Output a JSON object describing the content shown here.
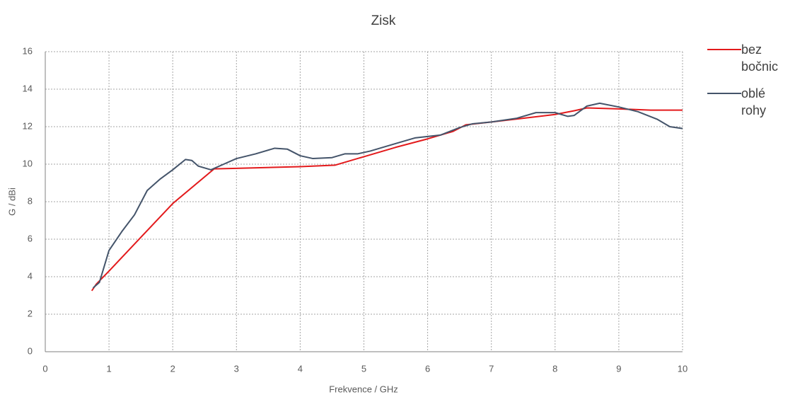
{
  "chart_data": {
    "type": "line",
    "title": "Zisk",
    "xlabel": "Frekvence / GHz",
    "ylabel": "G / dBi",
    "xlim": [
      0,
      10
    ],
    "xticks": [
      0,
      1,
      2,
      3,
      4,
      5,
      6,
      7,
      8,
      9,
      10
    ],
    "ylim": [
      0,
      16
    ],
    "yticks": [
      0,
      2,
      4,
      6,
      8,
      10,
      12,
      14,
      16
    ],
    "grid": true,
    "series": [
      {
        "name": "bez bočnic",
        "color": "#e31a1c",
        "x": [
          0.73,
          0.8,
          1,
          1.5,
          2,
          2.65,
          3,
          4,
          4.55,
          5,
          5.5,
          6,
          6.4,
          6.6,
          7,
          7.5,
          8,
          8.3,
          8.5,
          9,
          9.5,
          10
        ],
        "values": [
          3.25,
          3.6,
          4.3,
          6.1,
          7.9,
          9.75,
          9.78,
          9.87,
          9.95,
          10.4,
          10.9,
          11.35,
          11.75,
          12.1,
          12.25,
          12.45,
          12.65,
          12.85,
          13.0,
          12.95,
          12.88,
          12.88
        ]
      },
      {
        "name": "oblé rohy",
        "color": "#44546a",
        "x": [
          0.75,
          0.85,
          1,
          1.2,
          1.4,
          1.6,
          1.8,
          2,
          2.2,
          2.3,
          2.4,
          2.6,
          2.8,
          3,
          3.3,
          3.6,
          3.8,
          4,
          4.2,
          4.5,
          4.7,
          4.9,
          5.1,
          5.5,
          5.8,
          6.2,
          6.5,
          6.7,
          7,
          7.4,
          7.7,
          8,
          8.2,
          8.3,
          8.5,
          8.7,
          9,
          9.3,
          9.6,
          9.8,
          10
        ],
        "values": [
          3.4,
          3.7,
          5.4,
          6.4,
          7.3,
          8.6,
          9.2,
          9.7,
          10.25,
          10.2,
          9.9,
          9.7,
          10.0,
          10.3,
          10.55,
          10.85,
          10.8,
          10.45,
          10.3,
          10.35,
          10.55,
          10.55,
          10.7,
          11.1,
          11.4,
          11.55,
          11.95,
          12.15,
          12.25,
          12.45,
          12.75,
          12.75,
          12.55,
          12.6,
          13.1,
          13.25,
          13.05,
          12.8,
          12.4,
          12.0,
          11.9
        ]
      }
    ]
  }
}
